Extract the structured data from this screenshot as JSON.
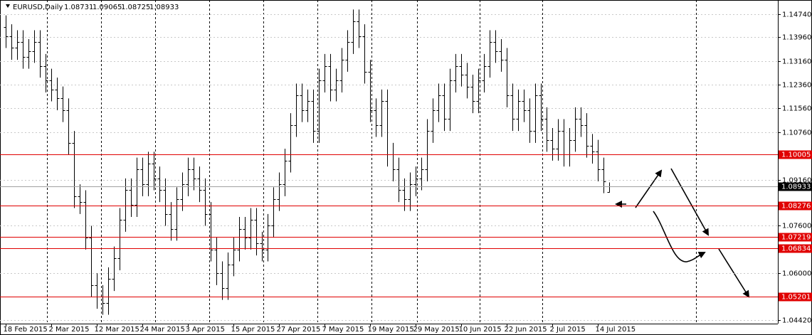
{
  "chart_data": {
    "type": "ohlc",
    "title": "EURUSD,Daily",
    "color": "#000000",
    "grid": true,
    "categories": [
      "18 Feb 2015",
      null,
      null,
      null,
      null,
      null,
      null,
      null,
      "2 Mar 2015",
      null,
      null,
      null,
      null,
      null,
      null,
      null,
      "12 Mar 2015",
      null,
      null,
      null,
      null,
      null,
      null,
      null,
      "24 Mar 2015",
      null,
      null,
      null,
      null,
      null,
      null,
      null,
      "3 Apr 2015",
      null,
      null,
      null,
      null,
      null,
      null,
      null,
      "15 Apr 2015",
      null,
      null,
      null,
      null,
      null,
      null,
      null,
      "27 Apr 2015",
      null,
      null,
      null,
      null,
      null,
      null,
      null,
      "7 May 2015",
      null,
      null,
      null,
      null,
      null,
      null,
      null,
      "19 May 2015",
      null,
      null,
      null,
      null,
      null,
      null,
      null,
      "29 May 2015",
      null,
      null,
      null,
      null,
      null,
      null,
      null,
      "10 Jun 2015",
      null,
      null,
      null,
      null,
      null,
      null,
      null,
      "22 Jun 2015",
      null,
      null,
      null,
      null,
      null,
      null,
      null,
      "2 Jul 2015",
      null,
      null,
      null,
      null,
      null,
      null,
      null,
      "14 Jul 2015",
      null,
      null
    ],
    "open": [
      1.143,
      1.14,
      1.136,
      1.138,
      1.133,
      1.135,
      1.138,
      1.13,
      1.125,
      1.122,
      1.119,
      1.115,
      1.104,
      1.086,
      1.084,
      1.072,
      1.056,
      1.052,
      1.05,
      1.058,
      1.065,
      1.078,
      1.088,
      1.083,
      1.095,
      1.09,
      1.097,
      1.092,
      1.088,
      1.08,
      1.075,
      1.085,
      1.09,
      1.095,
      1.092,
      1.088,
      1.08,
      1.068,
      1.06,
      1.055,
      1.063,
      1.068,
      1.075,
      1.072,
      1.078,
      1.07,
      1.068,
      1.076,
      1.085,
      1.09,
      1.098,
      1.11,
      1.12,
      1.115,
      1.118,
      1.108,
      1.125,
      1.13,
      1.122,
      1.125,
      1.132,
      1.138,
      1.145,
      1.14,
      1.128,
      1.115,
      1.11,
      1.118,
      1.1,
      1.095,
      1.088,
      1.085,
      1.09,
      1.092,
      1.095,
      1.108,
      1.115,
      1.12,
      1.112,
      1.125,
      1.13,
      1.127,
      1.123,
      1.118,
      1.125,
      1.13,
      1.138,
      1.135,
      1.132,
      1.12,
      1.112,
      1.118,
      1.115,
      1.108,
      1.12,
      1.112,
      1.105,
      1.102,
      1.108,
      1.1,
      1.105,
      1.112,
      1.11,
      1.103,
      1.101,
      1.095,
      1.08731
    ],
    "high": [
      1.147,
      1.144,
      1.142,
      1.142,
      1.139,
      1.142,
      1.142,
      1.134,
      1.129,
      1.126,
      1.123,
      1.119,
      1.108,
      1.09,
      1.088,
      1.076,
      1.06,
      1.056,
      1.062,
      1.069,
      1.082,
      1.092,
      1.092,
      1.099,
      1.099,
      1.101,
      1.101,
      1.096,
      1.092,
      1.084,
      1.089,
      1.094,
      1.099,
      1.099,
      1.096,
      1.092,
      1.084,
      1.072,
      1.064,
      1.067,
      1.072,
      1.079,
      1.079,
      1.082,
      1.082,
      1.074,
      1.08,
      1.089,
      1.094,
      1.102,
      1.114,
      1.124,
      1.124,
      1.122,
      1.122,
      1.129,
      1.134,
      1.134,
      1.129,
      1.136,
      1.142,
      1.149,
      1.149,
      1.144,
      1.132,
      1.119,
      1.122,
      1.122,
      1.104,
      1.099,
      1.092,
      1.094,
      1.096,
      1.099,
      1.112,
      1.119,
      1.124,
      1.124,
      1.129,
      1.134,
      1.134,
      1.131,
      1.127,
      1.129,
      1.134,
      1.142,
      1.142,
      1.139,
      1.136,
      1.124,
      1.122,
      1.122,
      1.119,
      1.124,
      1.124,
      1.116,
      1.109,
      1.112,
      1.112,
      1.109,
      1.116,
      1.116,
      1.114,
      1.107,
      1.105,
      1.099,
      1.09065
    ],
    "low": [
      1.136,
      1.132,
      1.132,
      1.129,
      1.129,
      1.131,
      1.126,
      1.121,
      1.118,
      1.115,
      1.111,
      1.1,
      1.082,
      1.08,
      1.068,
      1.052,
      1.048,
      1.046,
      1.046,
      1.054,
      1.061,
      1.074,
      1.079,
      1.079,
      1.086,
      1.086,
      1.088,
      1.084,
      1.076,
      1.071,
      1.071,
      1.081,
      1.086,
      1.088,
      1.084,
      1.076,
      1.064,
      1.056,
      1.051,
      1.051,
      1.059,
      1.064,
      1.068,
      1.068,
      1.066,
      1.064,
      1.064,
      1.072,
      1.081,
      1.086,
      1.094,
      1.106,
      1.111,
      1.111,
      1.104,
      1.104,
      1.121,
      1.118,
      1.118,
      1.121,
      1.128,
      1.134,
      1.136,
      1.124,
      1.111,
      1.106,
      1.106,
      1.096,
      1.091,
      1.084,
      1.081,
      1.081,
      1.086,
      1.088,
      1.091,
      1.104,
      1.111,
      1.108,
      1.108,
      1.121,
      1.123,
      1.119,
      1.114,
      1.114,
      1.121,
      1.126,
      1.131,
      1.128,
      1.116,
      1.108,
      1.108,
      1.111,
      1.104,
      1.104,
      1.108,
      1.101,
      1.098,
      1.098,
      1.096,
      1.096,
      1.101,
      1.106,
      1.099,
      1.097,
      1.091,
      1.087,
      1.08725
    ],
    "close": [
      1.14,
      1.136,
      1.138,
      1.133,
      1.135,
      1.138,
      1.13,
      1.125,
      1.122,
      1.119,
      1.115,
      1.104,
      1.086,
      1.084,
      1.072,
      1.056,
      1.052,
      1.05,
      1.058,
      1.065,
      1.078,
      1.088,
      1.083,
      1.095,
      1.09,
      1.097,
      1.092,
      1.088,
      1.08,
      1.075,
      1.085,
      1.09,
      1.095,
      1.092,
      1.088,
      1.08,
      1.068,
      1.06,
      1.055,
      1.063,
      1.068,
      1.075,
      1.072,
      1.078,
      1.07,
      1.068,
      1.076,
      1.085,
      1.09,
      1.098,
      1.11,
      1.12,
      1.115,
      1.118,
      1.108,
      1.125,
      1.13,
      1.122,
      1.125,
      1.132,
      1.138,
      1.145,
      1.14,
      1.128,
      1.115,
      1.11,
      1.118,
      1.1,
      1.095,
      1.088,
      1.085,
      1.09,
      1.092,
      1.095,
      1.108,
      1.115,
      1.12,
      1.112,
      1.125,
      1.13,
      1.127,
      1.123,
      1.118,
      1.125,
      1.13,
      1.138,
      1.135,
      1.132,
      1.12,
      1.112,
      1.118,
      1.115,
      1.108,
      1.12,
      1.112,
      1.105,
      1.102,
      1.108,
      1.1,
      1.105,
      1.112,
      1.11,
      1.103,
      1.101,
      1.095,
      1.091,
      1.08933
    ],
    "ylim": [
      1.043,
      1.1522
    ],
    "yticks": [
      {
        "value": 1.1474,
        "label": "1.14740"
      },
      {
        "value": 1.1396,
        "label": "1.13960"
      },
      {
        "value": 1.1316,
        "label": "1.13160"
      },
      {
        "value": 1.1236,
        "label": "1.12360"
      },
      {
        "value": 1.1156,
        "label": "1.11560"
      },
      {
        "value": 1.1076,
        "label": "1.10760"
      },
      {
        "value": 1.0916,
        "label": "1.09160"
      },
      {
        "value": 1.076,
        "label": "1.07600"
      },
      {
        "value": 1.06,
        "label": "1.06000"
      },
      {
        "value": 1.0442,
        "label": "1.04420"
      }
    ],
    "levels": [
      1.10005,
      1.08276,
      1.07219,
      1.06834,
      1.05201
    ],
    "level_color": "#e00000"
  }
}
